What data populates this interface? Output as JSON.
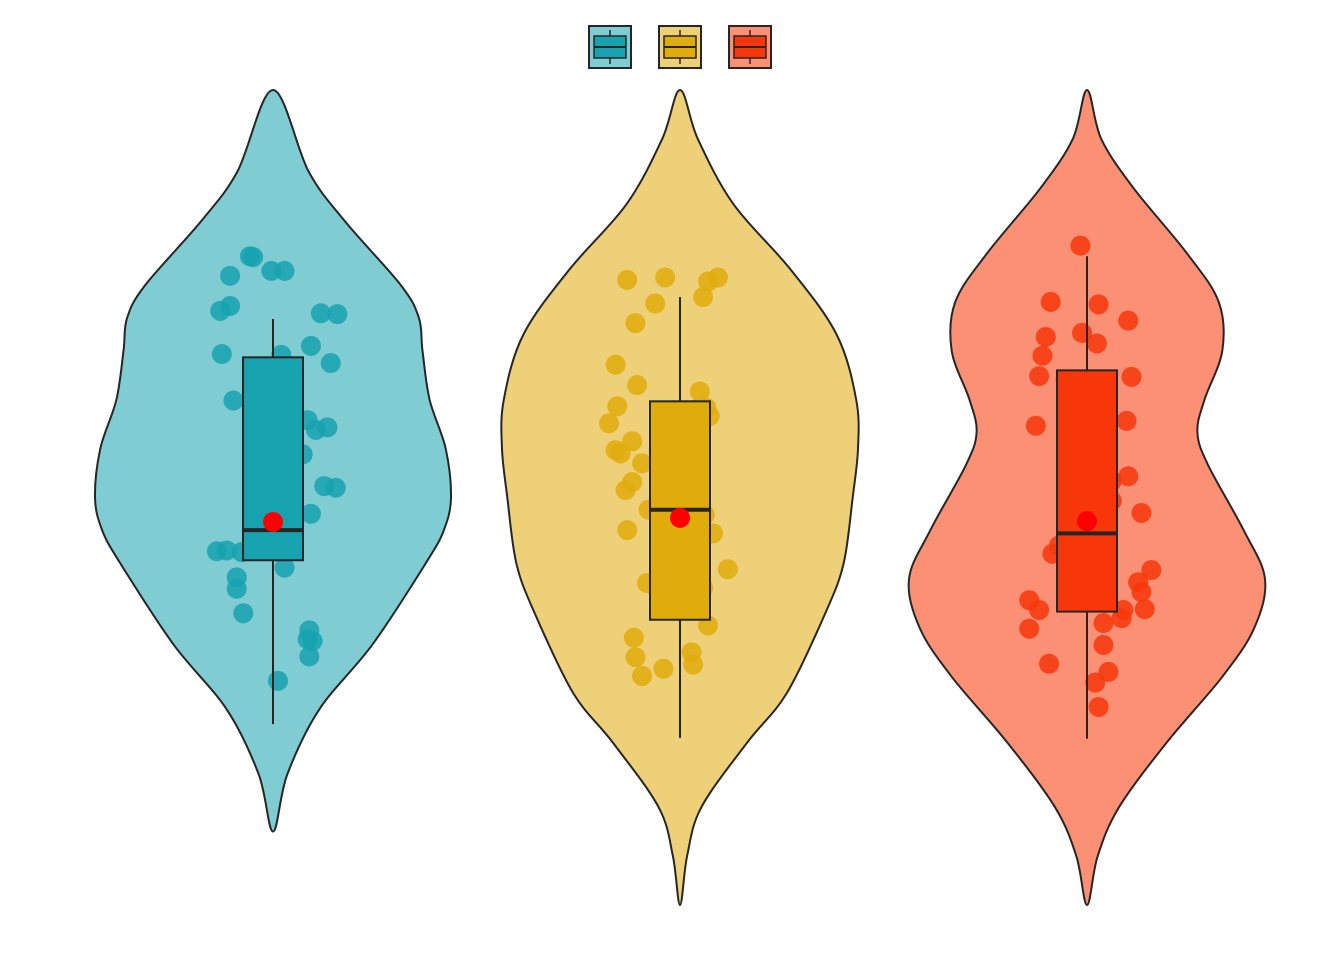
{
  "chart_data": {
    "type": "violin",
    "title": "",
    "xlabel": "",
    "ylabel": "",
    "ylim": [
      0,
      100
    ],
    "grid": false,
    "legend": {
      "position": "top-center",
      "entries": [
        {
          "name": "",
          "color": "#16A2AF"
        },
        {
          "name": "",
          "color": "#E0AC0B"
        },
        {
          "name": "",
          "color": "#F7370A"
        }
      ]
    },
    "series": [
      {
        "name": "",
        "fill": "#7FCCD3",
        "box_color": "#16A2AF",
        "point_color": "#16A2AF",
        "violin": {
          "min": 9,
          "max": 100,
          "profile": [
            [
              9,
              0
            ],
            [
              16,
              8
            ],
            [
              24,
              26
            ],
            [
              32,
              56
            ],
            [
              42,
              86
            ],
            [
              46,
              96
            ],
            [
              50,
              100
            ],
            [
              56,
              97
            ],
            [
              62,
              88
            ],
            [
              68,
              84
            ],
            [
              72,
              82
            ],
            [
              76,
              72
            ],
            [
              84,
              40
            ],
            [
              90,
              20
            ],
            [
              100,
              0
            ]
          ]
        },
        "box": {
          "q1": 42.3,
          "median": 46.0,
          "q3": 67.2,
          "whisker_low": 22.2,
          "whisker_high": 71.9
        },
        "mean": 47.0,
        "points": [
          [
            -0.28,
            43.5
          ],
          [
            -0.19,
            43.3
          ],
          [
            -0.22,
            40.2
          ],
          [
            -0.18,
            35.8
          ],
          [
            -0.22,
            38.8
          ],
          [
            -0.26,
            73.5
          ],
          [
            -0.26,
            77.2
          ],
          [
            -0.14,
            79.6
          ],
          [
            -0.12,
            79.5
          ],
          [
            -0.24,
            61.9
          ],
          [
            -0.34,
            43.4
          ],
          [
            -0.31,
            67.6
          ],
          [
            -0.32,
            72.9
          ],
          [
            -0.09,
            58.2
          ],
          [
            -0.06,
            58.4
          ],
          [
            -0.05,
            62.5
          ],
          [
            -0.01,
            77.8
          ],
          [
            -0.02,
            58.1
          ],
          [
            0.04,
            63.5
          ],
          [
            0.07,
            77.8
          ],
          [
            0.05,
            67.5
          ],
          [
            0.07,
            41.4
          ],
          [
            0.03,
            45.2
          ],
          [
            0.0,
            58.3
          ],
          [
            0.03,
            27.5
          ],
          [
            0.18,
            55.3
          ],
          [
            0.23,
            68.6
          ],
          [
            0.21,
            59.5
          ],
          [
            0.26,
            58.3
          ],
          [
            0.23,
            48.0
          ],
          [
            0.29,
            72.6
          ],
          [
            0.35,
            66.5
          ],
          [
            0.39,
            72.5
          ],
          [
            0.31,
            51.4
          ],
          [
            0.38,
            51.2
          ],
          [
            0.33,
            58.6
          ],
          [
            0.21,
            32.6
          ],
          [
            0.22,
            33.7
          ],
          [
            0.22,
            30.5
          ],
          [
            0.24,
            32.4
          ]
        ]
      },
      {
        "name": "",
        "fill": "#EDD077",
        "box_color": "#E0AC0B",
        "point_color": "#E0AC0B",
        "violin": {
          "min": 0,
          "max": 100,
          "profile": [
            [
              0,
              0
            ],
            [
              6,
              4
            ],
            [
              12,
              12
            ],
            [
              20,
              38
            ],
            [
              26,
              60
            ],
            [
              36,
              82
            ],
            [
              42,
              92
            ],
            [
              50,
              97
            ],
            [
              56,
              100
            ],
            [
              62,
              99
            ],
            [
              70,
              88
            ],
            [
              78,
              62
            ],
            [
              86,
              30
            ],
            [
              94,
              10
            ],
            [
              100,
              0
            ]
          ]
        },
        "box": {
          "q1": 35.0,
          "median": 48.5,
          "q3": 61.8,
          "whisker_low": 20.5,
          "whisker_high": 74.6
        },
        "mean": 47.5,
        "points": [
          [
            -0.43,
            59.1
          ],
          [
            -0.38,
            61.2
          ],
          [
            -0.39,
            66.3
          ],
          [
            -0.39,
            55.8
          ],
          [
            -0.32,
            76.7
          ],
          [
            -0.36,
            55.4
          ],
          [
            -0.27,
            71.4
          ],
          [
            -0.26,
            63.8
          ],
          [
            -0.23,
            54.2
          ],
          [
            -0.29,
            56.9
          ],
          [
            -0.33,
            50.9
          ],
          [
            -0.29,
            51.9
          ],
          [
            -0.32,
            46.0
          ],
          [
            -0.15,
            73.8
          ],
          [
            -0.09,
            77.0
          ],
          [
            -0.13,
            38.4
          ],
          [
            -0.19,
            48.5
          ],
          [
            -0.1,
            29.0
          ],
          [
            -0.23,
            28.1
          ],
          [
            -0.27,
            30.4
          ],
          [
            -0.28,
            32.8
          ],
          [
            -0.2,
            39.5
          ],
          [
            0.01,
            39.3
          ],
          [
            0.09,
            60.8
          ],
          [
            0.12,
            63.0
          ],
          [
            0.16,
            61.0
          ],
          [
            0.18,
            60.0
          ],
          [
            0.15,
            47.9
          ],
          [
            0.14,
            38.9
          ],
          [
            0.08,
            29.5
          ],
          [
            0.17,
            34.3
          ],
          [
            0.07,
            31.0
          ],
          [
            0.1,
            43.5
          ],
          [
            0.09,
            46.1
          ],
          [
            0.17,
            76.5
          ],
          [
            0.14,
            74.6
          ],
          [
            0.23,
            77.0
          ],
          [
            0.29,
            41.2
          ],
          [
            0.2,
            45.6
          ],
          [
            0.1,
            59.5
          ]
        ]
      },
      {
        "name": "",
        "fill": "#FB9075",
        "box_color": "#F7370A",
        "point_color": "#F7370A",
        "violin": {
          "min": 0,
          "max": 100,
          "profile": [
            [
              0,
              0
            ],
            [
              6,
              6
            ],
            [
              12,
              18
            ],
            [
              20,
              45
            ],
            [
              28,
              76
            ],
            [
              34,
              94
            ],
            [
              40,
              100
            ],
            [
              46,
              88
            ],
            [
              54,
              68
            ],
            [
              58,
              62
            ],
            [
              62,
              66
            ],
            [
              68,
              76
            ],
            [
              74,
              74
            ],
            [
              80,
              56
            ],
            [
              88,
              26
            ],
            [
              94,
              8
            ],
            [
              100,
              0
            ]
          ]
        },
        "box": {
          "q1": 36.0,
          "median": 45.6,
          "q3": 65.6,
          "whisker_low": 20.4,
          "whisker_high": 79.6
        },
        "mean": 47.1,
        "points": [
          [
            -0.22,
            74.0
          ],
          [
            -0.25,
            69.7
          ],
          [
            -0.27,
            67.4
          ],
          [
            -0.31,
            58.8
          ],
          [
            -0.29,
            64.9
          ],
          [
            -0.13,
            64.5
          ],
          [
            -0.04,
            80.9
          ],
          [
            -0.03,
            70.2
          ],
          [
            0.07,
            73.7
          ],
          [
            0.06,
            68.9
          ],
          [
            0.05,
            62.7
          ],
          [
            0.12,
            62.6
          ],
          [
            0.24,
            59.4
          ],
          [
            0.25,
            71.7
          ],
          [
            0.27,
            64.8
          ],
          [
            -0.1,
            49.1
          ],
          [
            -0.09,
            43.5
          ],
          [
            -0.17,
            44.1
          ],
          [
            -0.21,
            43.1
          ],
          [
            0.11,
            49.0
          ],
          [
            0.15,
            49.6
          ],
          [
            0.08,
            45.2
          ],
          [
            0.06,
            41.6
          ],
          [
            0.15,
            52.0
          ],
          [
            0.25,
            52.6
          ],
          [
            0.33,
            38.4
          ],
          [
            0.31,
            39.6
          ],
          [
            0.35,
            36.3
          ],
          [
            0.39,
            41.1
          ],
          [
            0.33,
            48.1
          ],
          [
            -0.35,
            37.4
          ],
          [
            -0.29,
            36.2
          ],
          [
            -0.35,
            33.9
          ],
          [
            -0.23,
            29.6
          ],
          [
            0.1,
            34.6
          ],
          [
            0.1,
            31.9
          ],
          [
            0.05,
            27.3
          ],
          [
            0.13,
            28.6
          ],
          [
            0.21,
            35.2
          ],
          [
            0.22,
            36.2
          ],
          [
            0.07,
            24.3
          ]
        ]
      }
    ]
  }
}
